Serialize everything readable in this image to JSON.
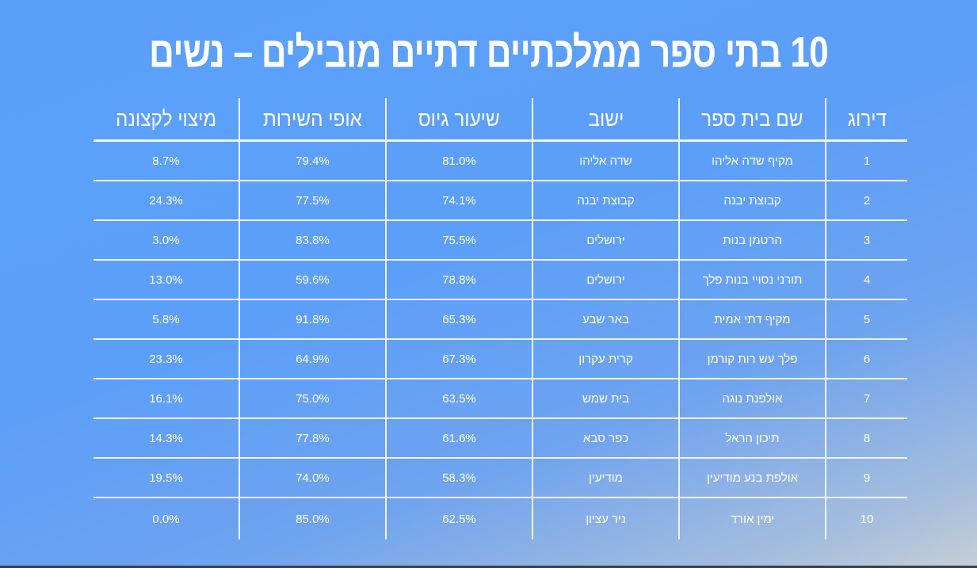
{
  "title": "10 בתי ספר ממלכתיים דתיים מובילים – נשים",
  "columns": [
    "דירוג",
    "שם בית ספר",
    "ישוב",
    "שיעור גיוס",
    "אופי השירות",
    "מיצוי לקצונה"
  ],
  "rows": [
    {
      "rank": "1",
      "school": "מקיף שדה אליהו",
      "city": "שדה אליהו",
      "recruitment": "81.0%",
      "service": "79.4%",
      "officers": "8.7%"
    },
    {
      "rank": "2",
      "school": "קבוצת יבנה",
      "city": "קבוצת יבנה",
      "recruitment": "74.1%",
      "service": "77.5%",
      "officers": "24.3%"
    },
    {
      "rank": "3",
      "school": "הרטמן בנות",
      "city": "ירושלים",
      "recruitment": "75.5%",
      "service": "83.8%",
      "officers": "3.0%"
    },
    {
      "rank": "4",
      "school": "תורני נסויי בנות פלך",
      "city": "ירושלים",
      "recruitment": "78.8%",
      "service": "59.6%",
      "officers": "13.0%"
    },
    {
      "rank": "5",
      "school": "מקיף דתי אמית",
      "city": "באר שבע",
      "recruitment": "65.3%",
      "service": "91.8%",
      "officers": "5.8%"
    },
    {
      "rank": "6",
      "school": "פלך עש רות קורמן",
      "city": "קרית עקרון",
      "recruitment": "67.3%",
      "service": "64.9%",
      "officers": "23.3%"
    },
    {
      "rank": "7",
      "school": "אולפנת נוגה",
      "city": "בית שמש",
      "recruitment": "63.5%",
      "service": "75.0%",
      "officers": "16.1%"
    },
    {
      "rank": "8",
      "school": "תיכון הראל",
      "city": "כפר סבא",
      "recruitment": "61.6%",
      "service": "77.8%",
      "officers": "14.3%"
    },
    {
      "rank": "9",
      "school": "אולפת בנע מודיעין",
      "city": "מודיעין",
      "recruitment": "58.3%",
      "service": "74.0%",
      "officers": "19.5%"
    },
    {
      "rank": "10",
      "school": "ימין אורד",
      "city": "ניר עציון",
      "recruitment": "62.5%",
      "service": "85.0%",
      "officers": "0.0%"
    }
  ]
}
